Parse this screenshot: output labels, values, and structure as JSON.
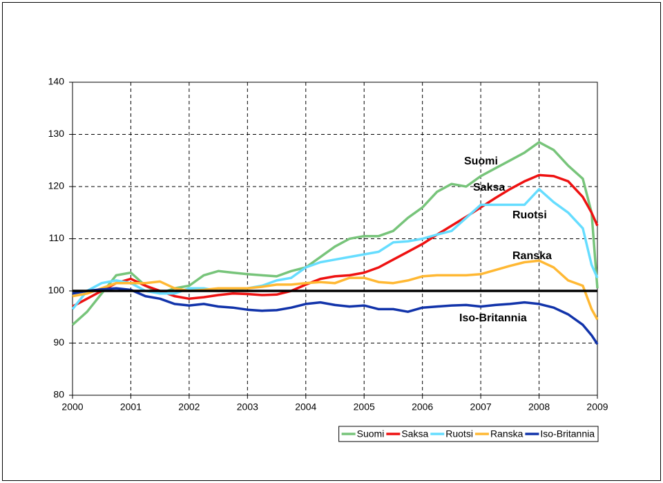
{
  "chart_data": {
    "type": "line",
    "x": [
      2000,
      2000.25,
      2000.5,
      2000.75,
      2001,
      2001.25,
      2001.5,
      2001.75,
      2002,
      2002.25,
      2002.5,
      2002.75,
      2003,
      2003.25,
      2003.5,
      2003.75,
      2004,
      2004.25,
      2004.5,
      2004.75,
      2005,
      2005.25,
      2005.5,
      2005.75,
      2006,
      2006.25,
      2006.5,
      2006.75,
      2007,
      2007.25,
      2007.5,
      2007.75,
      2008,
      2008.25,
      2008.5,
      2008.75,
      2008.9,
      2009
    ],
    "series": [
      {
        "name": "Suomi",
        "color": "#77c47a",
        "values": [
          93.5,
          96,
          99.5,
          103,
          103.5,
          101,
          99.5,
          100.5,
          101,
          103,
          103.8,
          103.5,
          103.2,
          103,
          102.8,
          103.8,
          104.5,
          106.5,
          108.5,
          110,
          110.5,
          110.5,
          111.5,
          114,
          116,
          119,
          120.5,
          120,
          122,
          123.5,
          125,
          126.5,
          128.5,
          127,
          124,
          121.5,
          115,
          100.5
        ]
      },
      {
        "name": "Saksa",
        "color": "#ee1111",
        "values": [
          97,
          98.5,
          100,
          101.5,
          102.3,
          101,
          100,
          99,
          98.5,
          98.8,
          99.2,
          99.5,
          99.4,
          99.2,
          99.3,
          100,
          101.2,
          102.3,
          102.8,
          103,
          103.5,
          104.5,
          106,
          107.5,
          109,
          110.8,
          112.5,
          114.2,
          116,
          117.8,
          119.5,
          121,
          122.2,
          122,
          121,
          118,
          115,
          112.5
        ]
      },
      {
        "name": "Ruotsi",
        "color": "#66ddff",
        "values": [
          96.5,
          100,
          101.5,
          102,
          101.5,
          100,
          99.5,
          99.5,
          100.5,
          100.5,
          100,
          100.3,
          100.5,
          101,
          102,
          102.5,
          104.5,
          105.5,
          106,
          106.5,
          107,
          107.5,
          109.3,
          109.5,
          110,
          110.8,
          111.5,
          114,
          116.5,
          116.5,
          116.5,
          116.5,
          119.5,
          117,
          115,
          112,
          105,
          102.5
        ]
      },
      {
        "name": "Ranska",
        "color": "#ffb833",
        "values": [
          99,
          99.5,
          100.5,
          101.5,
          101.5,
          101.5,
          101.8,
          100.5,
          100,
          100.2,
          100.5,
          100.5,
          100.5,
          100.8,
          101.2,
          101.2,
          101.5,
          101.7,
          101.5,
          102.5,
          102.5,
          101.7,
          101.5,
          102,
          102.8,
          103,
          103,
          103,
          103.2,
          104,
          104.8,
          105.5,
          105.8,
          104.5,
          102,
          101,
          96.5,
          94.5
        ]
      },
      {
        "name": "Iso-Britannia",
        "color": "#1133aa",
        "values": [
          99.5,
          100,
          100.3,
          100.5,
          100.2,
          99,
          98.5,
          97.5,
          97.2,
          97.5,
          97,
          96.8,
          96.4,
          96.2,
          96.3,
          96.8,
          97.5,
          97.8,
          97.3,
          97,
          97.2,
          96.5,
          96.5,
          96,
          96.8,
          97,
          97.2,
          97.3,
          97,
          97.3,
          97.5,
          97.8,
          97.5,
          96.8,
          95.5,
          93.5,
          91.5,
          89.8
        ]
      }
    ],
    "annotations": [
      "Suomi",
      "Saksa",
      "Ruotsi",
      "Ranska",
      "Iso-Britannia"
    ],
    "reference_line": 100,
    "xlim": [
      2000,
      2009
    ],
    "xticks": [
      2000,
      2001,
      2002,
      2003,
      2004,
      2005,
      2006,
      2007,
      2008,
      2009
    ],
    "ylim": [
      80,
      140
    ],
    "yticks": [
      80,
      90,
      100,
      110,
      120,
      130,
      140
    ],
    "grid": true,
    "legend": "bottom"
  }
}
